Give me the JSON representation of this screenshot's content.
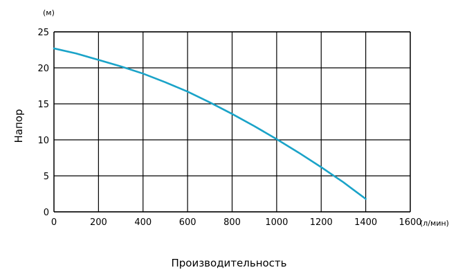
{
  "chart_data": {
    "type": "line",
    "ylabel": "Напор",
    "xlabel": "Производительность",
    "y_unit": "(м)",
    "x_unit": "(л/мин)",
    "xlim": [
      0,
      1600
    ],
    "ylim": [
      0,
      25
    ],
    "x_ticks": [
      "0",
      "200",
      "400",
      "600",
      "800",
      "1000",
      "1200",
      "1400",
      "1600"
    ],
    "y_ticks": [
      "0",
      "5",
      "10",
      "15",
      "20",
      "25"
    ],
    "grid": true,
    "line_color": "#1aa3c8",
    "series": [
      {
        "x": [
          0,
          100,
          200,
          300,
          400,
          500,
          600,
          700,
          800,
          900,
          1000,
          1100,
          1200,
          1300,
          1400
        ],
        "y": [
          22.7,
          22.0,
          21.1,
          20.2,
          19.2,
          18.0,
          16.7,
          15.2,
          13.6,
          11.9,
          10.1,
          8.2,
          6.2,
          4.1,
          1.8
        ]
      }
    ]
  }
}
